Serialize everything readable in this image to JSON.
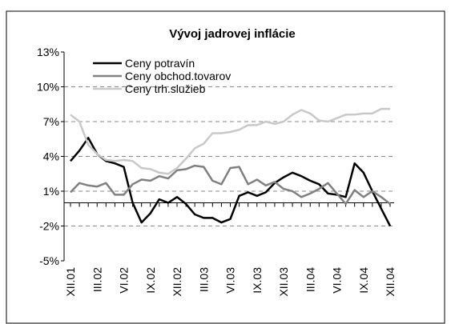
{
  "chart_data": {
    "type": "line",
    "title": "Vývoj jadrovej inflácie",
    "categories": [
      "XII.01",
      null,
      null,
      "III.02",
      null,
      null,
      "VI.02",
      null,
      null,
      "IX.02",
      null,
      null,
      "XII.02",
      null,
      null,
      "III.03",
      null,
      null,
      "VI.03",
      null,
      null,
      "IX.03",
      null,
      null,
      "XII.03",
      null,
      null,
      "III.04",
      null,
      null,
      "VI.04",
      null,
      null,
      "IX.04",
      null,
      null,
      "XII.04"
    ],
    "series": [
      {
        "name": "Ceny potravín",
        "color": "#000000",
        "values": [
          3.6,
          4.5,
          5.6,
          4.2,
          3.6,
          3.4,
          3.1,
          0,
          -1.7,
          -0.9,
          0.3,
          0,
          0.5,
          -0.1,
          -1.0,
          -1.3,
          -1.3,
          -1.7,
          -1.4,
          0.6,
          0.9,
          0.6,
          0.9,
          1.7,
          2.2,
          2.6,
          2.3,
          1.9,
          1.6,
          0.8,
          0.7,
          0.5,
          3.4,
          2.6,
          1.0,
          -0.5,
          -2.0
        ]
      },
      {
        "name": "Ceny obchod.tovarov",
        "color": "#808080",
        "values": [
          0.9,
          1.7,
          1.5,
          1.4,
          1.7,
          0.7,
          0.7,
          1.6,
          2.0,
          1.9,
          2.3,
          2.1,
          2.8,
          2.9,
          3.2,
          3.1,
          1.9,
          1.6,
          3.0,
          3.1,
          1.6,
          2.0,
          1.5,
          1.8,
          1.2,
          1.0,
          0.5,
          0.8,
          1.2,
          1.7,
          0.8,
          -0.1,
          1.1,
          0.5,
          1.0,
          0.5,
          -0.1
        ]
      },
      {
        "name": "Ceny trh.služieb",
        "color": "#c8c8c8",
        "values": [
          7.6,
          7.0,
          5.0,
          4.2,
          3.7,
          3.6,
          3.7,
          3.6,
          3.0,
          2.9,
          2.6,
          2.5,
          3.0,
          3.8,
          4.7,
          5.1,
          6.0,
          6.0,
          6.1,
          6.3,
          6.7,
          6.7,
          7.0,
          6.8,
          7.0,
          7.6,
          8.0,
          7.7,
          7.1,
          7.0,
          7.3,
          7.6,
          7.6,
          7.7,
          7.7,
          8.1,
          8.1
        ]
      }
    ],
    "ylim": [
      -5,
      13
    ],
    "yticks": [
      {
        "value": -5,
        "label": "-5%"
      },
      {
        "value": -2,
        "label": "-2%"
      },
      {
        "value": 1,
        "label": "1%"
      },
      {
        "value": 4,
        "label": "4%"
      },
      {
        "value": 7,
        "label": "7%"
      },
      {
        "value": 10,
        "label": "10%"
      },
      {
        "value": 13,
        "label": "13%"
      }
    ],
    "grid": true,
    "legend": "upper left"
  }
}
